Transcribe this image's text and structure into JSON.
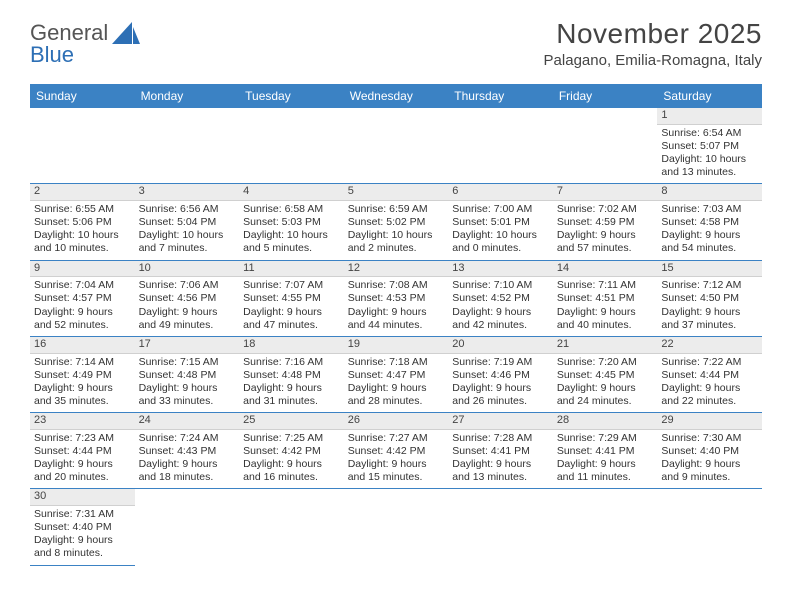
{
  "logo": {
    "text1": "General",
    "text2": "Blue"
  },
  "title": "November 2025",
  "subtitle": "Palagano, Emilia-Romagna, Italy",
  "colors": {
    "accent": "#3b82c4",
    "dayShade": "#ececec",
    "bg": "#ffffff"
  },
  "weekdays": [
    "Sunday",
    "Monday",
    "Tuesday",
    "Wednesday",
    "Thursday",
    "Friday",
    "Saturday"
  ],
  "startOffset": 6,
  "days": [
    {
      "n": 1,
      "sunrise": "6:54 AM",
      "sunset": "5:07 PM",
      "daylight": "10 hours and 13 minutes."
    },
    {
      "n": 2,
      "sunrise": "6:55 AM",
      "sunset": "5:06 PM",
      "daylight": "10 hours and 10 minutes."
    },
    {
      "n": 3,
      "sunrise": "6:56 AM",
      "sunset": "5:04 PM",
      "daylight": "10 hours and 7 minutes."
    },
    {
      "n": 4,
      "sunrise": "6:58 AM",
      "sunset": "5:03 PM",
      "daylight": "10 hours and 5 minutes."
    },
    {
      "n": 5,
      "sunrise": "6:59 AM",
      "sunset": "5:02 PM",
      "daylight": "10 hours and 2 minutes."
    },
    {
      "n": 6,
      "sunrise": "7:00 AM",
      "sunset": "5:01 PM",
      "daylight": "10 hours and 0 minutes."
    },
    {
      "n": 7,
      "sunrise": "7:02 AM",
      "sunset": "4:59 PM",
      "daylight": "9 hours and 57 minutes."
    },
    {
      "n": 8,
      "sunrise": "7:03 AM",
      "sunset": "4:58 PM",
      "daylight": "9 hours and 54 minutes."
    },
    {
      "n": 9,
      "sunrise": "7:04 AM",
      "sunset": "4:57 PM",
      "daylight": "9 hours and 52 minutes."
    },
    {
      "n": 10,
      "sunrise": "7:06 AM",
      "sunset": "4:56 PM",
      "daylight": "9 hours and 49 minutes."
    },
    {
      "n": 11,
      "sunrise": "7:07 AM",
      "sunset": "4:55 PM",
      "daylight": "9 hours and 47 minutes."
    },
    {
      "n": 12,
      "sunrise": "7:08 AM",
      "sunset": "4:53 PM",
      "daylight": "9 hours and 44 minutes."
    },
    {
      "n": 13,
      "sunrise": "7:10 AM",
      "sunset": "4:52 PM",
      "daylight": "9 hours and 42 minutes."
    },
    {
      "n": 14,
      "sunrise": "7:11 AM",
      "sunset": "4:51 PM",
      "daylight": "9 hours and 40 minutes."
    },
    {
      "n": 15,
      "sunrise": "7:12 AM",
      "sunset": "4:50 PM",
      "daylight": "9 hours and 37 minutes."
    },
    {
      "n": 16,
      "sunrise": "7:14 AM",
      "sunset": "4:49 PM",
      "daylight": "9 hours and 35 minutes."
    },
    {
      "n": 17,
      "sunrise": "7:15 AM",
      "sunset": "4:48 PM",
      "daylight": "9 hours and 33 minutes."
    },
    {
      "n": 18,
      "sunrise": "7:16 AM",
      "sunset": "4:48 PM",
      "daylight": "9 hours and 31 minutes."
    },
    {
      "n": 19,
      "sunrise": "7:18 AM",
      "sunset": "4:47 PM",
      "daylight": "9 hours and 28 minutes."
    },
    {
      "n": 20,
      "sunrise": "7:19 AM",
      "sunset": "4:46 PM",
      "daylight": "9 hours and 26 minutes."
    },
    {
      "n": 21,
      "sunrise": "7:20 AM",
      "sunset": "4:45 PM",
      "daylight": "9 hours and 24 minutes."
    },
    {
      "n": 22,
      "sunrise": "7:22 AM",
      "sunset": "4:44 PM",
      "daylight": "9 hours and 22 minutes."
    },
    {
      "n": 23,
      "sunrise": "7:23 AM",
      "sunset": "4:44 PM",
      "daylight": "9 hours and 20 minutes."
    },
    {
      "n": 24,
      "sunrise": "7:24 AM",
      "sunset": "4:43 PM",
      "daylight": "9 hours and 18 minutes."
    },
    {
      "n": 25,
      "sunrise": "7:25 AM",
      "sunset": "4:42 PM",
      "daylight": "9 hours and 16 minutes."
    },
    {
      "n": 26,
      "sunrise": "7:27 AM",
      "sunset": "4:42 PM",
      "daylight": "9 hours and 15 minutes."
    },
    {
      "n": 27,
      "sunrise": "7:28 AM",
      "sunset": "4:41 PM",
      "daylight": "9 hours and 13 minutes."
    },
    {
      "n": 28,
      "sunrise": "7:29 AM",
      "sunset": "4:41 PM",
      "daylight": "9 hours and 11 minutes."
    },
    {
      "n": 29,
      "sunrise": "7:30 AM",
      "sunset": "4:40 PM",
      "daylight": "9 hours and 9 minutes."
    },
    {
      "n": 30,
      "sunrise": "7:31 AM",
      "sunset": "4:40 PM",
      "daylight": "9 hours and 8 minutes."
    }
  ],
  "labels": {
    "sunrise": "Sunrise:",
    "sunset": "Sunset:",
    "daylight": "Daylight:"
  }
}
